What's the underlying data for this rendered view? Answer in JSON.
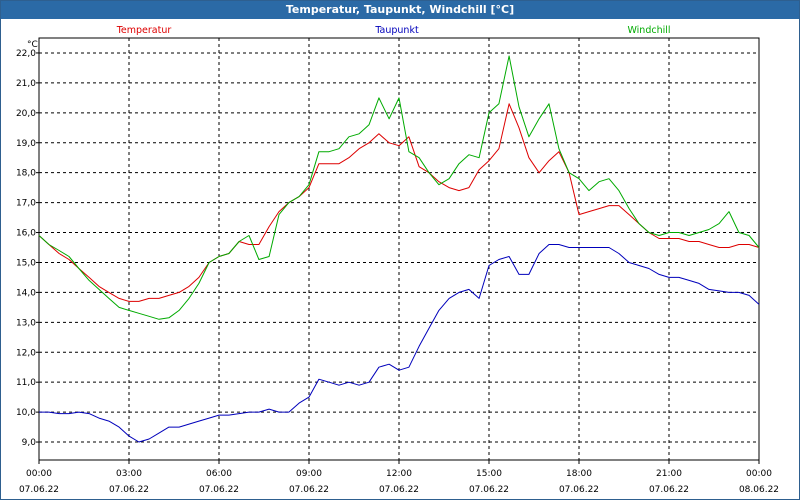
{
  "window": {
    "title": "Temperatur, Taupunkt, Windchill [°C]"
  },
  "chart_data": {
    "type": "line",
    "title": "Temperatur, Taupunkt, Windchill [°C]",
    "ylabel": "°C",
    "xlabel": "",
    "ylim": [
      8.4,
      22.5
    ],
    "xlim": [
      0,
      24
    ],
    "grid": true,
    "yticks": [
      9.0,
      10.0,
      11.0,
      12.0,
      13.0,
      14.0,
      15.0,
      16.0,
      17.0,
      18.0,
      19.0,
      20.0,
      21.0,
      22.0
    ],
    "ytick_labels": [
      "9,0",
      "10,0",
      "11,0",
      "12,0",
      "13,0",
      "14,0",
      "15,0",
      "16,0",
      "17,0",
      "18,0",
      "19,0",
      "20,0",
      "21,0",
      "22,0"
    ],
    "xticks": [
      {
        "x": 0,
        "time": "00:00",
        "date": "07.06.22"
      },
      {
        "x": 3,
        "time": "03:00",
        "date": "07.06.22"
      },
      {
        "x": 6,
        "time": "06:00",
        "date": "07.06.22"
      },
      {
        "x": 9,
        "time": "09:00",
        "date": "07.06.22"
      },
      {
        "x": 12,
        "time": "12:00",
        "date": "07.06.22"
      },
      {
        "x": 15,
        "time": "15:00",
        "date": "07.06.22"
      },
      {
        "x": 18,
        "time": "18:00",
        "date": "07.06.22"
      },
      {
        "x": 21,
        "time": "21:00",
        "date": "07.06.22"
      },
      {
        "x": 24,
        "time": "00:00",
        "date": "08.06.22"
      }
    ],
    "series": [
      {
        "name": "Temperatur",
        "color": "#dd0000",
        "x": [
          0,
          0.33,
          0.67,
          1.0,
          1.33,
          1.67,
          2.0,
          2.33,
          2.67,
          3.0,
          3.33,
          3.67,
          4.0,
          4.33,
          4.67,
          5.0,
          5.33,
          5.67,
          6.0,
          6.33,
          6.67,
          7.0,
          7.33,
          7.67,
          8.0,
          8.33,
          8.67,
          9.0,
          9.33,
          9.67,
          10.0,
          10.33,
          10.67,
          11.0,
          11.33,
          11.67,
          12.0,
          12.33,
          12.67,
          13.0,
          13.33,
          13.67,
          14.0,
          14.33,
          14.67,
          15.0,
          15.33,
          15.67,
          16.0,
          16.33,
          16.67,
          17.0,
          17.33,
          17.67,
          18.0,
          18.33,
          18.67,
          19.0,
          19.33,
          19.67,
          20.0,
          20.33,
          20.67,
          21.0,
          21.33,
          21.67,
          22.0,
          22.33,
          22.67,
          23.0,
          23.33,
          23.67,
          24.0
        ],
        "values": [
          15.9,
          15.6,
          15.3,
          15.1,
          14.8,
          14.5,
          14.2,
          14.0,
          13.8,
          13.7,
          13.7,
          13.8,
          13.8,
          13.9,
          14.0,
          14.2,
          14.5,
          15.0,
          15.2,
          15.3,
          15.7,
          15.6,
          15.6,
          16.2,
          16.7,
          17.0,
          17.2,
          17.5,
          18.3,
          18.3,
          18.3,
          18.5,
          18.8,
          19.0,
          19.3,
          19.0,
          18.9,
          19.2,
          18.2,
          18.0,
          17.7,
          17.5,
          17.4,
          17.5,
          18.1,
          18.4,
          18.8,
          20.3,
          19.5,
          18.5,
          18.0,
          18.4,
          18.7,
          18.0,
          16.6,
          16.7,
          16.8,
          16.9,
          16.9,
          16.6,
          16.3,
          16.0,
          15.8,
          15.8,
          15.8,
          15.7,
          15.7,
          15.6,
          15.5,
          15.5,
          15.6,
          15.6,
          15.5
        ]
      },
      {
        "name": "Taupunkt",
        "color": "#0000bb",
        "x": [
          0,
          0.33,
          0.67,
          1.0,
          1.33,
          1.67,
          2.0,
          2.33,
          2.67,
          3.0,
          3.33,
          3.67,
          4.0,
          4.33,
          4.67,
          5.0,
          5.33,
          5.67,
          6.0,
          6.33,
          6.67,
          7.0,
          7.33,
          7.67,
          8.0,
          8.33,
          8.67,
          9.0,
          9.33,
          9.67,
          10.0,
          10.33,
          10.67,
          11.0,
          11.33,
          11.67,
          12.0,
          12.33,
          12.67,
          13.0,
          13.33,
          13.67,
          14.0,
          14.33,
          14.67,
          15.0,
          15.33,
          15.67,
          16.0,
          16.33,
          16.67,
          17.0,
          17.33,
          17.67,
          18.0,
          18.33,
          18.67,
          19.0,
          19.33,
          19.67,
          20.0,
          20.33,
          20.67,
          21.0,
          21.33,
          21.67,
          22.0,
          22.33,
          22.67,
          23.0,
          23.33,
          23.67,
          24.0
        ],
        "values": [
          10.0,
          10.0,
          9.95,
          9.95,
          10.0,
          9.95,
          9.8,
          9.7,
          9.5,
          9.2,
          9.0,
          9.1,
          9.3,
          9.5,
          9.5,
          9.6,
          9.7,
          9.8,
          9.9,
          9.9,
          9.95,
          10.0,
          10.0,
          10.1,
          10.0,
          10.0,
          10.3,
          10.5,
          11.1,
          11.0,
          10.9,
          11.0,
          10.9,
          11.0,
          11.5,
          11.6,
          11.4,
          11.5,
          12.2,
          12.8,
          13.4,
          13.8,
          14.0,
          14.1,
          13.8,
          14.9,
          15.1,
          15.2,
          14.6,
          14.6,
          15.3,
          15.6,
          15.6,
          15.5,
          15.5,
          15.5,
          15.5,
          15.5,
          15.3,
          15.0,
          14.9,
          14.8,
          14.6,
          14.5,
          14.5,
          14.4,
          14.3,
          14.1,
          14.05,
          14.0,
          14.0,
          13.9,
          13.6
        ]
      },
      {
        "name": "Windchill",
        "color": "#00aa00",
        "x": [
          0,
          0.33,
          0.67,
          1.0,
          1.33,
          1.67,
          2.0,
          2.33,
          2.67,
          3.0,
          3.33,
          3.67,
          4.0,
          4.33,
          4.67,
          5.0,
          5.33,
          5.67,
          6.0,
          6.33,
          6.67,
          7.0,
          7.33,
          7.67,
          8.0,
          8.33,
          8.67,
          9.0,
          9.33,
          9.67,
          10.0,
          10.33,
          10.67,
          11.0,
          11.33,
          11.67,
          12.0,
          12.33,
          12.67,
          13.0,
          13.33,
          13.67,
          14.0,
          14.33,
          14.67,
          15.0,
          15.33,
          15.67,
          16.0,
          16.33,
          16.67,
          17.0,
          17.33,
          17.67,
          18.0,
          18.33,
          18.67,
          19.0,
          19.33,
          19.67,
          20.0,
          20.33,
          20.67,
          21.0,
          21.33,
          21.67,
          22.0,
          22.33,
          22.67,
          23.0,
          23.33,
          23.67,
          24.0
        ],
        "values": [
          15.9,
          15.6,
          15.4,
          15.2,
          14.8,
          14.4,
          14.1,
          13.8,
          13.5,
          13.4,
          13.3,
          13.2,
          13.1,
          13.15,
          13.4,
          13.8,
          14.3,
          15.0,
          15.2,
          15.3,
          15.7,
          15.9,
          15.1,
          15.2,
          16.6,
          17.0,
          17.2,
          17.6,
          18.7,
          18.7,
          18.8,
          19.2,
          19.3,
          19.6,
          20.5,
          19.8,
          20.5,
          18.7,
          18.5,
          18.0,
          17.6,
          17.8,
          18.3,
          18.6,
          18.5,
          20.0,
          20.3,
          21.9,
          20.2,
          19.2,
          19.8,
          20.3,
          18.8,
          18.0,
          17.8,
          17.4,
          17.7,
          17.8,
          17.4,
          16.8,
          16.3,
          16.0,
          15.9,
          16.0,
          16.0,
          15.9,
          16.0,
          16.1,
          16.3,
          16.7,
          16.0,
          15.9,
          15.5
        ]
      }
    ]
  }
}
